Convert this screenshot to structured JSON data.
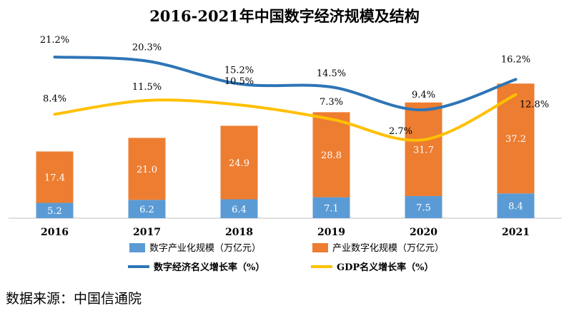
{
  "chart_data": {
    "type": "bar",
    "title": "2016-2021年中国数字经济规模及结构",
    "categories": [
      "2016",
      "2017",
      "2018",
      "2019",
      "2020",
      "2021"
    ],
    "series": [
      {
        "name": "数字产业化规模（万亿元）",
        "kind": "bar",
        "stack": "main",
        "color": "#5b9bd5",
        "values": [
          5.2,
          6.2,
          6.4,
          7.1,
          7.5,
          8.4
        ],
        "labels": [
          "5.2",
          "6.2",
          "6.4",
          "7.1",
          "7.5",
          "8.4"
        ]
      },
      {
        "name": "产业数字化规模（万亿元）",
        "kind": "bar",
        "stack": "main",
        "color": "#ed7d31",
        "values": [
          17.4,
          21.0,
          24.9,
          28.8,
          31.7,
          37.2
        ],
        "labels": [
          "17.4",
          "21.0",
          "24.9",
          "28.8",
          "31.7",
          "37.2"
        ]
      },
      {
        "name": "数字经济名义增长率（%）",
        "kind": "line",
        "color": "#2e75b6",
        "values": [
          21.2,
          20.3,
          15.2,
          14.5,
          9.4,
          16.2
        ],
        "labels": [
          "21.2%",
          "20.3%",
          "15.2%",
          "14.5%",
          "9.4%",
          "16.2%"
        ]
      },
      {
        "name": "GDP名义增长率（%）",
        "kind": "line",
        "color": "#ffc000",
        "values": [
          8.4,
          11.5,
          10.5,
          7.3,
          2.7,
          12.8
        ],
        "labels": [
          "8.4%",
          "11.5%",
          "10.5%",
          "7.3%",
          "2.7%",
          "12.8%"
        ]
      }
    ],
    "legend_position": "bottom",
    "grid": false
  },
  "source_text": "数据来源：中国信通院"
}
